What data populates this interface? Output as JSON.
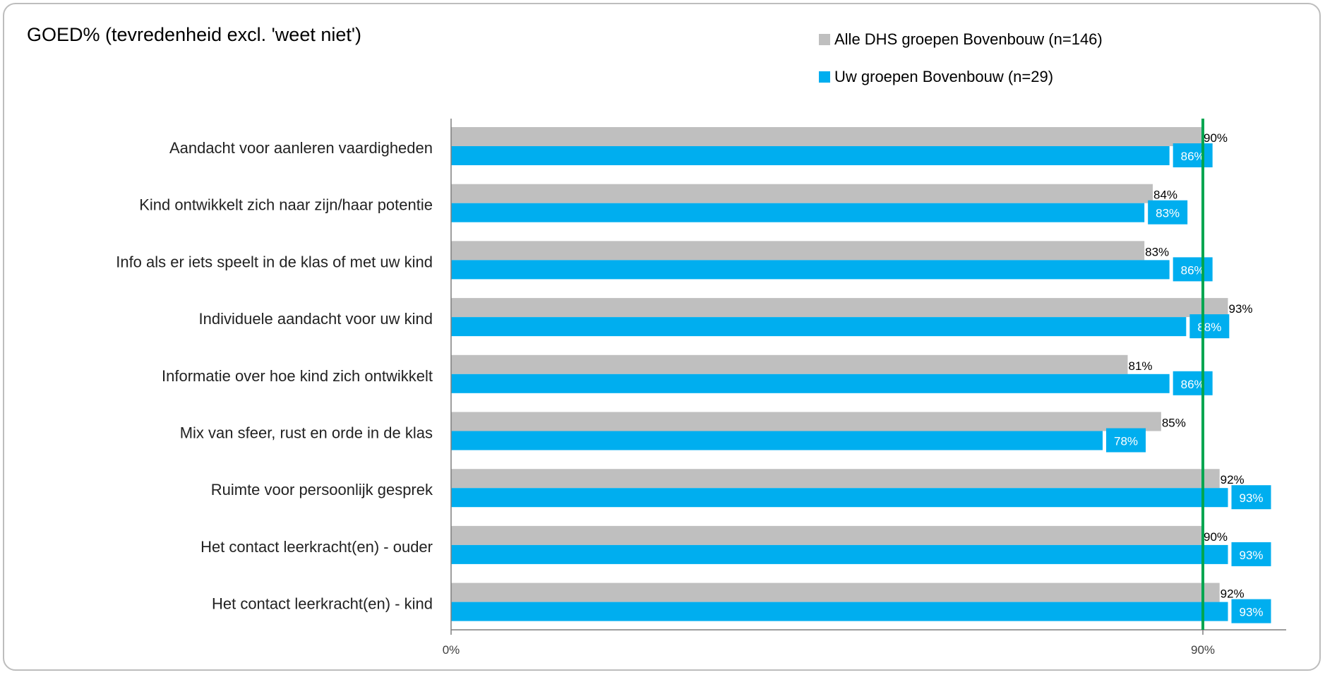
{
  "chart_data": {
    "type": "bar",
    "orientation": "horizontal",
    "title": "GOED% (tevredenheid excl. 'weet niet')",
    "categories": [
      "Aandacht voor aanleren vaardigheden",
      "Kind ontwikkelt zich naar zijn/haar potentie",
      "Info als er iets speelt in de klas of met uw kind",
      "Individuele aandacht voor uw kind",
      "Informatie over hoe kind zich ontwikkelt",
      "Mix van sfeer, rust en orde in de klas",
      "Ruimte voor persoonlijk gesprek",
      "Het contact leerkracht(en) - ouder",
      "Het contact leerkracht(en) - kind"
    ],
    "series": [
      {
        "name": "Alle DHS groepen Bovenbouw (n=146)",
        "color": "#bfbfbf",
        "values": [
          90,
          84,
          83,
          93,
          81,
          85,
          92,
          90,
          92
        ],
        "labels": [
          "90%",
          "84%",
          "83%",
          "93%",
          "81%",
          "85%",
          "92%",
          "90%",
          "92%"
        ]
      },
      {
        "name": "Uw groepen Bovenbouw (n=29)",
        "color": "#00aeef",
        "values": [
          86,
          83,
          86,
          88,
          86,
          78,
          93,
          93,
          93
        ],
        "labels": [
          "86%",
          "83%",
          "86%",
          "88%",
          "86%",
          "78%",
          "93%",
          "93%",
          "93%"
        ]
      }
    ],
    "xlim": [
      0,
      100
    ],
    "xticks": [
      0,
      90
    ],
    "xtick_labels": [
      "0%",
      "90%"
    ],
    "reference_line": {
      "value": 90,
      "color": "#00a651"
    },
    "legend_position": "top-right",
    "grid": false
  }
}
